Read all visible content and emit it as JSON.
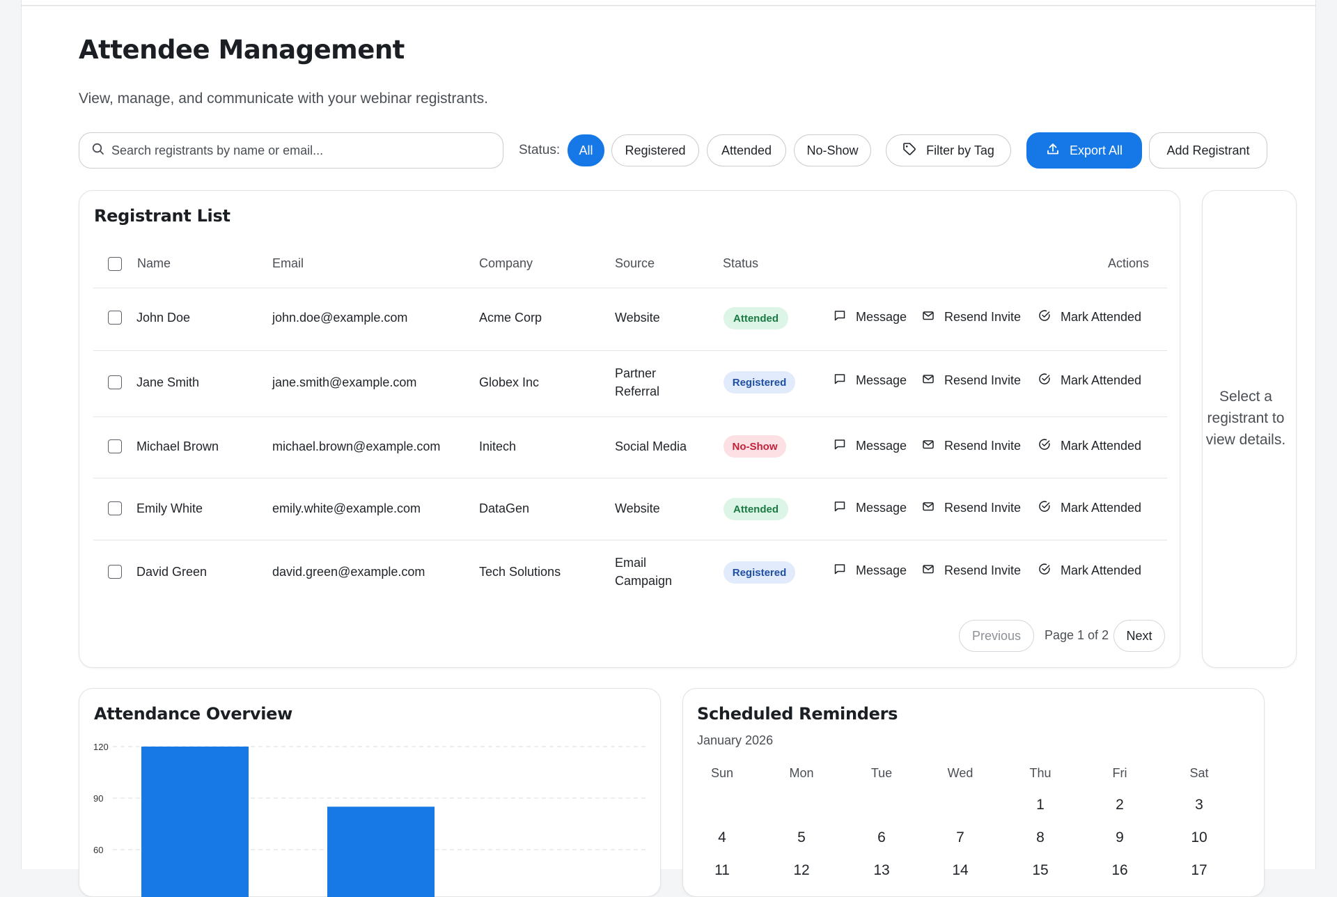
{
  "page": {
    "title": "Attendee Management",
    "subtitle": "View, manage, and communicate with your webinar registrants."
  },
  "toolbar": {
    "search_placeholder": "Search registrants by name or email...",
    "status_label": "Status:",
    "filters": [
      "All",
      "Registered",
      "Attended",
      "No-Show"
    ],
    "active_filter": "All",
    "filter_by_tag": "Filter by Tag",
    "export_all": "Export All",
    "add_registrant": "Add Registrant"
  },
  "registrants": {
    "title": "Registrant List",
    "columns": {
      "name": "Name",
      "email": "Email",
      "company": "Company",
      "source": "Source",
      "status": "Status",
      "actions": "Actions"
    },
    "action_labels": {
      "message": "Message",
      "resend": "Resend Invite",
      "mark": "Mark Attended"
    },
    "rows": [
      {
        "name": "John Doe",
        "email": "john.doe@example.com",
        "company": "Acme Corp",
        "source": "Website",
        "status": "Attended"
      },
      {
        "name": "Jane Smith",
        "email": "jane.smith@example.com",
        "company": "Globex Inc",
        "source": "Partner Referral",
        "status": "Registered"
      },
      {
        "name": "Michael Brown",
        "email": "michael.brown@example.com",
        "company": "Initech",
        "source": "Social Media",
        "status": "No-Show"
      },
      {
        "name": "Emily White",
        "email": "emily.white@example.com",
        "company": "DataGen",
        "source": "Website",
        "status": "Attended"
      },
      {
        "name": "David Green",
        "email": "david.green@example.com",
        "company": "Tech Solutions",
        "source": "Email Campaign",
        "status": "Registered"
      }
    ],
    "pagination": {
      "previous": "Previous",
      "page_text": "Page 1 of 2",
      "next": "Next"
    }
  },
  "details_panel": {
    "empty_text": "Select a registrant to view details."
  },
  "attendance": {
    "title": "Attendance Overview"
  },
  "reminders": {
    "title": "Scheduled Reminders",
    "month": "January 2026",
    "weekdays": [
      "Sun",
      "Mon",
      "Tue",
      "Wed",
      "Thu",
      "Fri",
      "Sat"
    ],
    "weeks": [
      [
        "",
        "",
        "",
        "",
        "1",
        "2",
        "3"
      ],
      [
        "4",
        "5",
        "6",
        "7",
        "8",
        "9",
        "10"
      ],
      [
        "11",
        "12",
        "13",
        "14",
        "15",
        "16",
        "17"
      ]
    ]
  },
  "chart_data": {
    "type": "bar",
    "title": "",
    "yticks": [
      120,
      90,
      60
    ],
    "ylim": [
      0,
      120
    ],
    "values": [
      120,
      85
    ],
    "bar_color": "#1679e6",
    "grid": "dashed horizontal"
  },
  "colors": {
    "accent": "#1678e6",
    "attended_bg": "#dcf5e6",
    "attended_text": "#1b7a44",
    "registered_bg": "#e1ebfb",
    "registered_text": "#1e4fa3",
    "noshow_bg": "#fde0e3",
    "noshow_text": "#c0213a"
  }
}
